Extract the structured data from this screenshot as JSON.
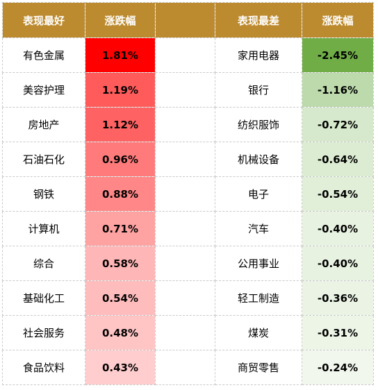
{
  "header": {
    "best_label": "表现最好",
    "change_label_left": "涨跌幅",
    "worst_label": "表现最差",
    "change_label_right": "涨跌幅"
  },
  "colors": {
    "header_bg": "#bd8b2f",
    "header_text": "#ffffff"
  },
  "rows": [
    {
      "best_name": "有色金属",
      "best_change": "1.81%",
      "best_color": "#ff0000",
      "worst_name": "家用电器",
      "worst_change": "-2.45%",
      "worst_color": "#70ad47"
    },
    {
      "best_name": "美容护理",
      "best_change": "1.19%",
      "best_color": "#ff5b5b",
      "worst_name": "银行",
      "worst_change": "-1.16%",
      "worst_color": "#bcdaab"
    },
    {
      "best_name": "房地产",
      "best_change": "1.12%",
      "best_color": "#ff6262",
      "worst_name": "纺织服饰",
      "worst_change": "-0.72%",
      "worst_color": "#d7e9cc"
    },
    {
      "best_name": "石油石化",
      "best_change": "0.96%",
      "best_color": "#ff7b7b",
      "worst_name": "机械设备",
      "worst_change": "-0.64%",
      "worst_color": "#dcecd2"
    },
    {
      "best_name": "钢铁",
      "best_change": "0.88%",
      "best_color": "#ff8787",
      "worst_name": "电子",
      "worst_change": "-0.54%",
      "worst_color": "#e1eed8"
    },
    {
      "best_name": "计算机",
      "best_change": "0.71%",
      "best_color": "#ffa2a2",
      "worst_name": "汽车",
      "worst_change": "-0.40%",
      "worst_color": "#e8f2e1"
    },
    {
      "best_name": "综合",
      "best_change": "0.58%",
      "best_color": "#ffb6b6",
      "worst_name": "公用事业",
      "worst_change": "-0.40%",
      "worst_color": "#e8f2e1"
    },
    {
      "best_name": "基础化工",
      "best_change": "0.54%",
      "best_color": "#ffbcbc",
      "worst_name": "轻工制造",
      "worst_change": "-0.36%",
      "worst_color": "#eaf3e4"
    },
    {
      "best_name": "社会服务",
      "best_change": "0.48%",
      "best_color": "#ffc5c5",
      "worst_name": "煤炭",
      "worst_change": "-0.31%",
      "worst_color": "#edf5e7"
    },
    {
      "best_name": "食品饮料",
      "best_change": "0.43%",
      "best_color": "#ffcdcd",
      "worst_name": "商贸零售",
      "worst_change": "-0.24%",
      "worst_color": "#f1f7ed"
    }
  ]
}
